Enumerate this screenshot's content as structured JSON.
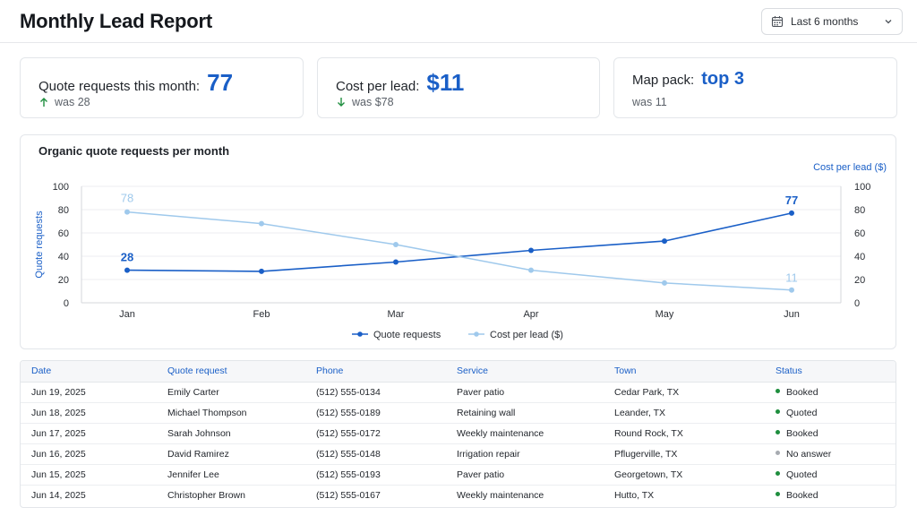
{
  "header": {
    "title": "Monthly Lead Report",
    "range_label": "Last 6 months",
    "calendar_icon": "calendar-icon",
    "dropdown_icon": "chevron-down-icon"
  },
  "kpis": [
    {
      "label": "Quote requests this month:",
      "value": "77",
      "note": "was 28",
      "trend": "up"
    },
    {
      "label": "Cost per lead:",
      "value": "$11",
      "note": "was $78",
      "trend": "down"
    },
    {
      "label": "Map pack:",
      "value": "top 3",
      "note": "was 11",
      "trend": "none"
    }
  ],
  "colors": {
    "accent": "#1a5fc7",
    "series_primary": "#1a5fc7",
    "series_secondary": "#9fc9ec",
    "trend_good": "#1e8e3e",
    "status_booked": "#1e8e3e",
    "status_quoted": "#1e8e3e",
    "status_no_answer": "#a7abb1"
  },
  "chart_data": {
    "type": "line",
    "title": "Organic quote requests per month",
    "categories": [
      "Jan",
      "Feb",
      "Mar",
      "Apr",
      "May",
      "Jun"
    ],
    "ylabel": "Quote requests",
    "y2label": "Cost per lead ($)",
    "ylim": [
      0,
      100
    ],
    "y2lim": [
      0,
      100
    ],
    "yticks": [
      0,
      20,
      40,
      60,
      80,
      100
    ],
    "grid": true,
    "legend_placement": "bottom-center",
    "series": [
      {
        "name": "Quote requests",
        "axis": "left",
        "values": [
          28,
          27,
          35,
          45,
          53,
          77
        ],
        "labels": [
          "28",
          "",
          "",
          "",
          "",
          "77"
        ]
      },
      {
        "name": "Cost per lead ($)",
        "axis": "right",
        "values": [
          78,
          68,
          50,
          28,
          17,
          11
        ],
        "labels": [
          "78",
          "",
          "",
          "",
          "",
          "11"
        ]
      }
    ]
  },
  "table": {
    "columns": [
      "Date",
      "Quote request",
      "Phone",
      "Service",
      "Town",
      "Status"
    ],
    "rows": [
      [
        "Jun 19, 2025",
        "Emily Carter",
        "(512) 555-0134",
        "Paver patio",
        "Cedar Park, TX",
        "Booked"
      ],
      [
        "Jun 18, 2025",
        "Michael Thompson",
        "(512) 555-0189",
        "Retaining wall",
        "Leander, TX",
        "Quoted"
      ],
      [
        "Jun 17, 2025",
        "Sarah Johnson",
        "(512) 555-0172",
        "Weekly maintenance",
        "Round Rock, TX",
        "Booked"
      ],
      [
        "Jun 16, 2025",
        "David Ramirez",
        "(512) 555-0148",
        "Irrigation repair",
        "Pflugerville, TX",
        "No answer"
      ],
      [
        "Jun 15, 2025",
        "Jennifer Lee",
        "(512) 555-0193",
        "Paver patio",
        "Georgetown, TX",
        "Quoted"
      ],
      [
        "Jun 14, 2025",
        "Christopher Brown",
        "(512) 555-0167",
        "Weekly maintenance",
        "Hutto, TX",
        "Booked"
      ]
    ]
  }
}
